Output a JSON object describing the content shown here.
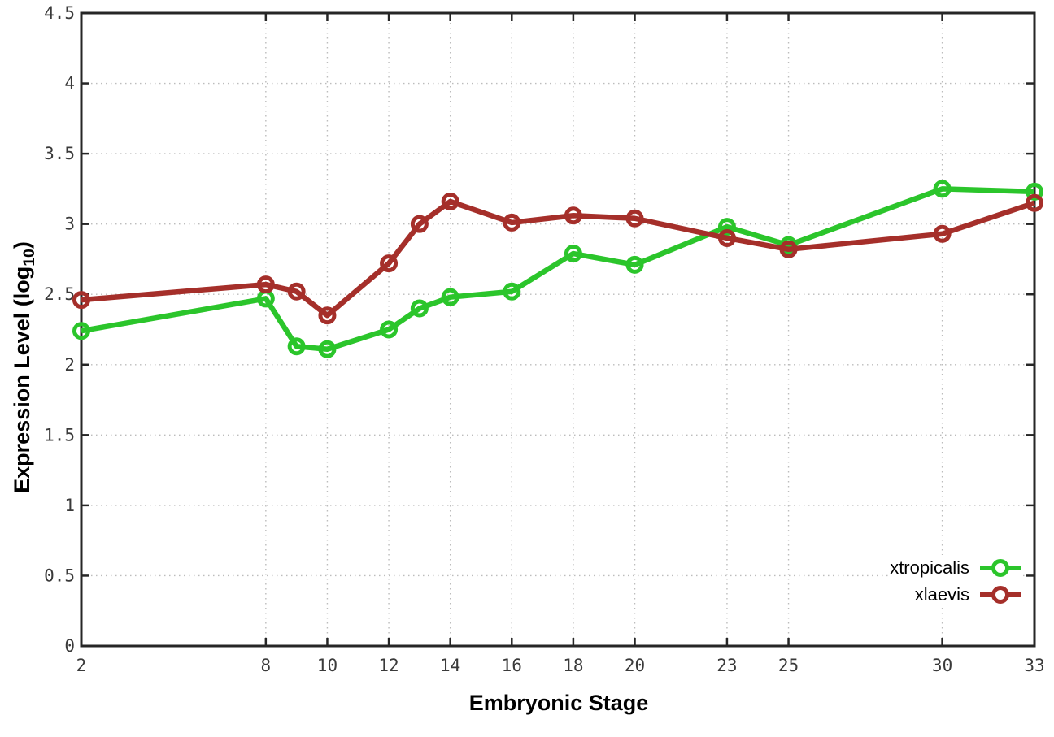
{
  "chart_data": {
    "type": "line",
    "xlabel": "Embryonic Stage",
    "ylabel_main": "Expression Level (log",
    "ylabel_sub": "10",
    "ylabel_close": ")",
    "x": [
      2,
      8,
      9,
      10,
      12,
      13,
      14,
      16,
      18,
      20,
      23,
      25,
      30,
      33
    ],
    "xticks": [
      2,
      8,
      10,
      12,
      14,
      16,
      18,
      20,
      23,
      25,
      30,
      33
    ],
    "yticks": [
      0,
      0.5,
      1,
      1.5,
      2,
      2.5,
      3,
      3.5,
      4,
      4.5
    ],
    "xlim": [
      2,
      33
    ],
    "ylim": [
      0,
      4.5
    ],
    "grid": true,
    "legend_position": "bottom-right",
    "series": [
      {
        "name": "xtropicalis",
        "color": "#2bc52b",
        "values": [
          2.24,
          2.47,
          2.13,
          2.11,
          2.25,
          2.4,
          2.48,
          2.52,
          2.79,
          2.71,
          2.98,
          2.85,
          3.25,
          3.23
        ]
      },
      {
        "name": "xlaevis",
        "color": "#a52f2a",
        "values": [
          2.46,
          2.57,
          2.52,
          2.35,
          2.72,
          3.0,
          3.16,
          3.01,
          3.06,
          3.04,
          2.9,
          2.82,
          2.93,
          3.15
        ]
      }
    ]
  },
  "style_colors": {
    "axis": "#262626",
    "grid": "#bcbcbc",
    "tick_text": "#3a3a3a"
  }
}
